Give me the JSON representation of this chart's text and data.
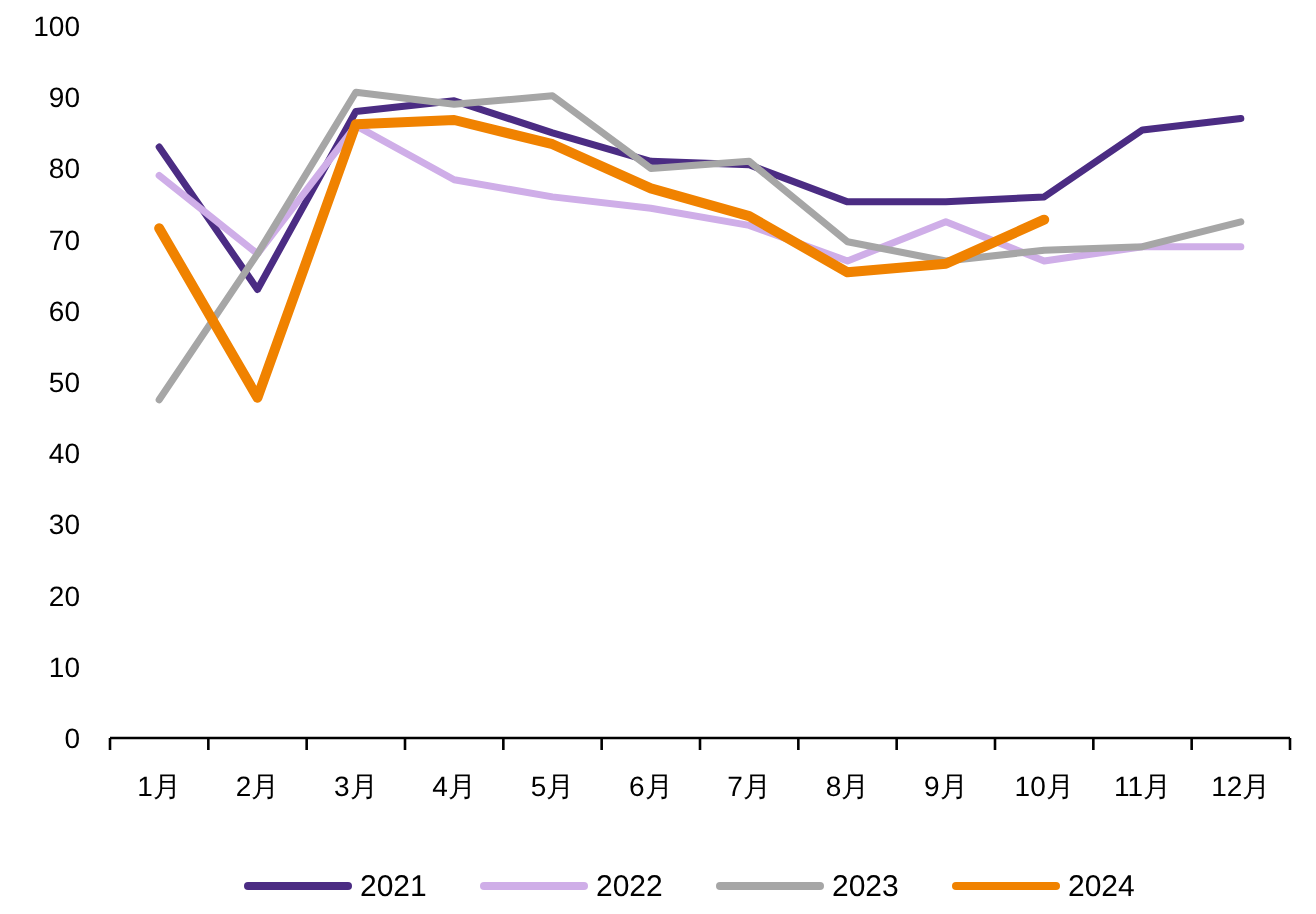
{
  "chart_data": {
    "type": "line",
    "categories": [
      "1月",
      "2月",
      "3月",
      "4月",
      "5月",
      "6月",
      "7月",
      "8月",
      "9月",
      "10月",
      "11月",
      "12月"
    ],
    "series": [
      {
        "name": "2021",
        "color": "#4b2c83",
        "values": [
          83,
          63,
          88,
          89.5,
          85,
          81,
          80.5,
          75.3,
          75.3,
          76,
          85.4,
          87
        ]
      },
      {
        "name": "2022",
        "color": "#cfaee8",
        "values": [
          79,
          68,
          86,
          78.4,
          76,
          74.4,
          72,
          67,
          72.5,
          67,
          69,
          69
        ]
      },
      {
        "name": "2023",
        "color": "#a6a6a6",
        "values": [
          47.5,
          68,
          90.7,
          89,
          90.2,
          80,
          81,
          69.7,
          67,
          68.5,
          69,
          72.5
        ]
      },
      {
        "name": "2024",
        "color": "#f08200",
        "values": [
          71.6,
          47.8,
          86.2,
          86.8,
          83.4,
          77.2,
          73.3,
          65.4,
          66.6,
          72.8,
          null,
          null
        ]
      }
    ],
    "ylim": [
      0,
      100
    ],
    "yticks": [
      0,
      10,
      20,
      30,
      40,
      50,
      60,
      70,
      80,
      90,
      100
    ],
    "grid": false,
    "legend": "bottom",
    "marker": "none",
    "line_style": "solid"
  }
}
